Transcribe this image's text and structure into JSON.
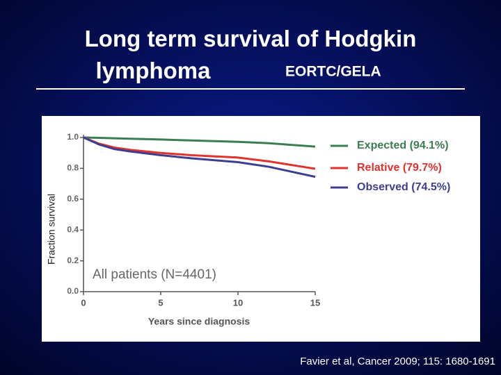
{
  "slide": {
    "title": "Long term survival of Hodgkin lymphoma",
    "subtitle": "EORTC/GELA",
    "source": "Favier et al, Cancer 2009; 115: 1680-1691"
  },
  "chart_data": {
    "type": "line",
    "ylabel": "Fraction survival",
    "xlabel": "Years since diagnosis",
    "annotation": "All patients (N=4401)",
    "x": [
      0,
      1,
      2,
      3,
      5,
      7,
      10,
      12,
      15
    ],
    "series": [
      {
        "name": "Expected (94.1%)",
        "color": "#3b7d52",
        "values": [
          1.0,
          0.998,
          0.995,
          0.992,
          0.987,
          0.981,
          0.972,
          0.963,
          0.941
        ]
      },
      {
        "name": "Relative (79.7%)",
        "color": "#e0322f",
        "values": [
          1.0,
          0.96,
          0.935,
          0.92,
          0.9,
          0.885,
          0.87,
          0.845,
          0.797
        ]
      },
      {
        "name": "Observed (74.5%)",
        "color": "#3d3f8e",
        "values": [
          1.0,
          0.955,
          0.925,
          0.91,
          0.885,
          0.865,
          0.84,
          0.81,
          0.745
        ]
      }
    ],
    "xlim": [
      0,
      15
    ],
    "xticks": [
      0,
      5,
      10,
      15
    ],
    "ylim": [
      0,
      1
    ],
    "yticks": [
      {
        "value": 0,
        "label": "0.0"
      },
      0.2,
      0.4,
      0.6,
      0.8,
      {
        "value": 1,
        "label": "1.0"
      }
    ],
    "legend": "right"
  }
}
